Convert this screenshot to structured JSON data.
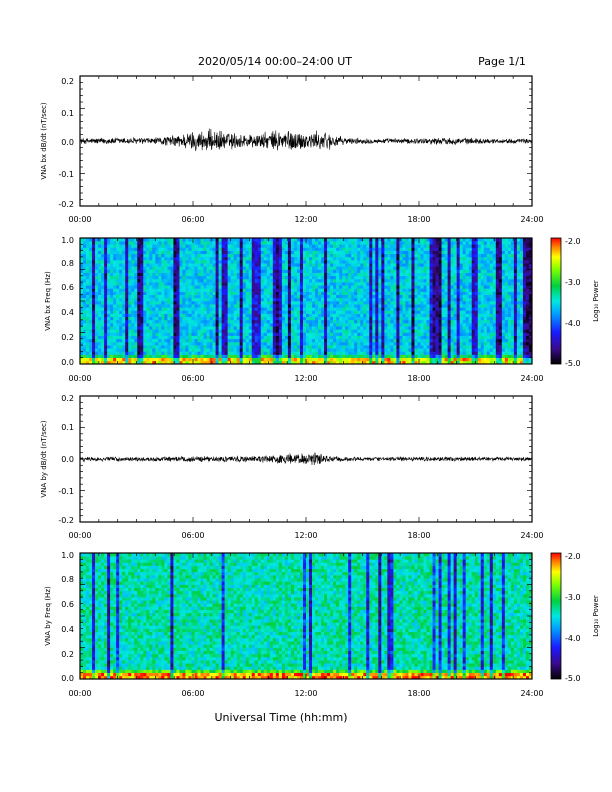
{
  "header": {
    "title": "2020/05/14  00:00–24:00 UT",
    "page": "Page 1/1"
  },
  "x_axis_title": "Universal Time (hh:mm)",
  "chart_data": [
    {
      "id": "bx_time",
      "type": "line",
      "ylabel": "VNA bx dB/dt (nT/sec)",
      "xlim_hours": [
        0,
        24
      ],
      "ylim": [
        -0.2,
        0.2
      ],
      "x_ticks": [
        "00:00",
        "06:00",
        "12:00",
        "18:00",
        "24:00"
      ],
      "y_ticks": [
        "0.2",
        "0.1",
        "0.0",
        "-0.1",
        "-0.2"
      ],
      "envelope": {
        "x_hours": [
          0,
          2,
          4,
          5,
          6,
          7,
          8,
          9,
          10,
          10.5,
          11,
          12,
          13,
          14,
          16,
          18,
          19,
          20,
          22,
          24
        ],
        "amplitude": [
          0.01,
          0.012,
          0.012,
          0.02,
          0.035,
          0.04,
          0.03,
          0.025,
          0.03,
          0.04,
          0.04,
          0.03,
          0.035,
          0.012,
          0.008,
          0.01,
          0.012,
          0.012,
          0.008,
          0.008
        ]
      },
      "color": "#000000"
    },
    {
      "id": "bx_spec",
      "type": "heatmap",
      "ylabel": "VNA bx Freq (Hz)",
      "xlim_hours": [
        0,
        24
      ],
      "ylim": [
        0,
        1.0
      ],
      "x_ticks": [
        "00:00",
        "06:00",
        "12:00",
        "18:00",
        "24:00"
      ],
      "y_ticks": [
        "1.0",
        "0.8",
        "0.6",
        "0.4",
        "0.2",
        "0.0"
      ],
      "colorbar": {
        "label": "Log₁₀ Power",
        "range": [
          -5.0,
          -2.0
        ],
        "ticks": [
          "-2.0",
          "-3.0",
          "-4.0",
          "-5.0"
        ]
      },
      "background_level": -3.6
    },
    {
      "id": "by_time",
      "type": "line",
      "ylabel": "VNA by dB/dt (nT/sec)",
      "xlim_hours": [
        0,
        24
      ],
      "ylim": [
        -0.2,
        0.2
      ],
      "x_ticks": [
        "00:00",
        "06:00",
        "12:00",
        "18:00",
        "24:00"
      ],
      "y_ticks": [
        "0.2",
        "0.1",
        "0.0",
        "-0.1",
        "-0.2"
      ],
      "envelope": {
        "x_hours": [
          0,
          2,
          4,
          6,
          7,
          8,
          9,
          10,
          11,
          12,
          12.5,
          13,
          14,
          16,
          18,
          20,
          22,
          24
        ],
        "amplitude": [
          0.008,
          0.008,
          0.008,
          0.01,
          0.01,
          0.01,
          0.012,
          0.015,
          0.02,
          0.02,
          0.03,
          0.015,
          0.008,
          0.007,
          0.008,
          0.008,
          0.007,
          0.007
        ]
      },
      "color": "#000000"
    },
    {
      "id": "by_spec",
      "type": "heatmap",
      "ylabel": "VNA by Freq (Hz)",
      "xlim_hours": [
        0,
        24
      ],
      "ylim": [
        0,
        1.0
      ],
      "x_ticks": [
        "00:00",
        "06:00",
        "12:00",
        "18:00",
        "24:00"
      ],
      "y_ticks": [
        "1.0",
        "0.8",
        "0.6",
        "0.4",
        "0.2",
        "0.0"
      ],
      "colorbar": {
        "label": "Log₁₀ Power",
        "range": [
          -5.0,
          -2.0
        ],
        "ticks": [
          "-2.0",
          "-3.0",
          "-4.0",
          "-5.0"
        ]
      },
      "background_level": -3.4
    }
  ]
}
